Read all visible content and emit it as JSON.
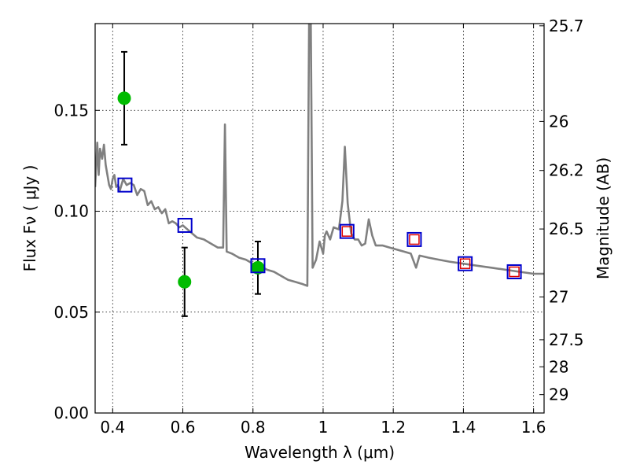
{
  "chart_data": {
    "type": "scatter",
    "xlabel": "Wavelength  λ (μm)",
    "ylabel": "Flux  Fν  ( μJy )",
    "y2label": "Magnitude (AB)",
    "xlim": [
      0.35,
      1.63
    ],
    "ylim": [
      0.0,
      0.193
    ],
    "grid": true,
    "x_ticks": [
      {
        "value": 0.4,
        "label": "0.4"
      },
      {
        "value": 0.6,
        "label": "0.6"
      },
      {
        "value": 0.8,
        "label": "0.8"
      },
      {
        "value": 1.0,
        "label": "1"
      },
      {
        "value": 1.2,
        "label": "1.2"
      },
      {
        "value": 1.4,
        "label": "1.4"
      },
      {
        "value": 1.6,
        "label": "1.6"
      }
    ],
    "y_ticks": [
      {
        "value": 0.0,
        "label": "0.00"
      },
      {
        "value": 0.05,
        "label": "0.05"
      },
      {
        "value": 0.1,
        "label": "0.10"
      },
      {
        "value": 0.15,
        "label": "0.15"
      }
    ],
    "mag_ticks": [
      {
        "label": "25.7",
        "flux": 0.1919
      },
      {
        "label": "26",
        "flux": 0.1445
      },
      {
        "label": "26.2",
        "flux": 0.1202
      },
      {
        "label": "26.5",
        "flux": 0.0912
      },
      {
        "label": "27",
        "flux": 0.0575
      },
      {
        "label": "27.5",
        "flux": 0.0363
      },
      {
        "label": "28",
        "flux": 0.0229
      },
      {
        "label": "29",
        "flux": 0.0091
      }
    ],
    "model_spectrum": {
      "color": "#808080",
      "points": [
        [
          0.35,
          0.112
        ],
        [
          0.356,
          0.134
        ],
        [
          0.36,
          0.118
        ],
        [
          0.364,
          0.131
        ],
        [
          0.37,
          0.126
        ],
        [
          0.375,
          0.133
        ],
        [
          0.38,
          0.123
        ],
        [
          0.385,
          0.118
        ],
        [
          0.39,
          0.113
        ],
        [
          0.395,
          0.111
        ],
        [
          0.4,
          0.116
        ],
        [
          0.405,
          0.118
        ],
        [
          0.41,
          0.112
        ],
        [
          0.415,
          0.113
        ],
        [
          0.42,
          0.11
        ],
        [
          0.43,
          0.116
        ],
        [
          0.44,
          0.113
        ],
        [
          0.45,
          0.114
        ],
        [
          0.46,
          0.113
        ],
        [
          0.47,
          0.108
        ],
        [
          0.48,
          0.111
        ],
        [
          0.49,
          0.11
        ],
        [
          0.5,
          0.103
        ],
        [
          0.51,
          0.105
        ],
        [
          0.52,
          0.101
        ],
        [
          0.53,
          0.102
        ],
        [
          0.54,
          0.099
        ],
        [
          0.55,
          0.101
        ],
        [
          0.56,
          0.094
        ],
        [
          0.57,
          0.095
        ],
        [
          0.58,
          0.094
        ],
        [
          0.59,
          0.092
        ],
        [
          0.6,
          0.093
        ],
        [
          0.62,
          0.09
        ],
        [
          0.64,
          0.087
        ],
        [
          0.66,
          0.086
        ],
        [
          0.68,
          0.084
        ],
        [
          0.7,
          0.082
        ],
        [
          0.715,
          0.082
        ],
        [
          0.72,
          0.143
        ],
        [
          0.725,
          0.08
        ],
        [
          0.74,
          0.079
        ],
        [
          0.76,
          0.077
        ],
        [
          0.78,
          0.076
        ],
        [
          0.8,
          0.074
        ],
        [
          0.82,
          0.073
        ],
        [
          0.84,
          0.071
        ],
        [
          0.86,
          0.07
        ],
        [
          0.88,
          0.068
        ],
        [
          0.9,
          0.066
        ],
        [
          0.92,
          0.065
        ],
        [
          0.94,
          0.064
        ],
        [
          0.955,
          0.063
        ],
        [
          0.96,
          0.193
        ],
        [
          0.965,
          0.193
        ],
        [
          0.97,
          0.072
        ],
        [
          0.98,
          0.076
        ],
        [
          0.99,
          0.085
        ],
        [
          1.0,
          0.079
        ],
        [
          1.005,
          0.088
        ],
        [
          1.01,
          0.09
        ],
        [
          1.02,
          0.086
        ],
        [
          1.03,
          0.092
        ],
        [
          1.045,
          0.091
        ],
        [
          1.055,
          0.105
        ],
        [
          1.062,
          0.132
        ],
        [
          1.07,
          0.104
        ],
        [
          1.08,
          0.089
        ],
        [
          1.09,
          0.086
        ],
        [
          1.1,
          0.086
        ],
        [
          1.11,
          0.083
        ],
        [
          1.12,
          0.084
        ],
        [
          1.13,
          0.096
        ],
        [
          1.14,
          0.088
        ],
        [
          1.15,
          0.083
        ],
        [
          1.17,
          0.083
        ],
        [
          1.19,
          0.082
        ],
        [
          1.21,
          0.081
        ],
        [
          1.23,
          0.08
        ],
        [
          1.25,
          0.079
        ],
        [
          1.265,
          0.072
        ],
        [
          1.275,
          0.078
        ],
        [
          1.3,
          0.077
        ],
        [
          1.33,
          0.076
        ],
        [
          1.36,
          0.075
        ],
        [
          1.4,
          0.074
        ],
        [
          1.44,
          0.073
        ],
        [
          1.48,
          0.072
        ],
        [
          1.52,
          0.071
        ],
        [
          1.56,
          0.07
        ],
        [
          1.6,
          0.069
        ],
        [
          1.63,
          0.069
        ]
      ]
    },
    "observed": {
      "color": "#00bb00",
      "points": [
        {
          "x": 0.433,
          "y": 0.156,
          "err": 0.023
        },
        {
          "x": 0.605,
          "y": 0.065,
          "err": 0.017
        },
        {
          "x": 0.814,
          "y": 0.072,
          "err": 0.013
        }
      ]
    },
    "model_photometry_blue": {
      "color": "#0000cc",
      "points": [
        {
          "x": 0.435,
          "y": 0.113
        },
        {
          "x": 0.606,
          "y": 0.093
        },
        {
          "x": 0.814,
          "y": 0.073
        },
        {
          "x": 1.068,
          "y": 0.09
        },
        {
          "x": 1.26,
          "y": 0.086
        },
        {
          "x": 1.405,
          "y": 0.074
        },
        {
          "x": 1.545,
          "y": 0.07
        }
      ]
    },
    "model_photometry_red": {
      "color": "#dd0000",
      "points": [
        {
          "x": 1.068,
          "y": 0.09
        },
        {
          "x": 1.26,
          "y": 0.086
        },
        {
          "x": 1.405,
          "y": 0.074
        },
        {
          "x": 1.545,
          "y": 0.07
        }
      ]
    }
  }
}
